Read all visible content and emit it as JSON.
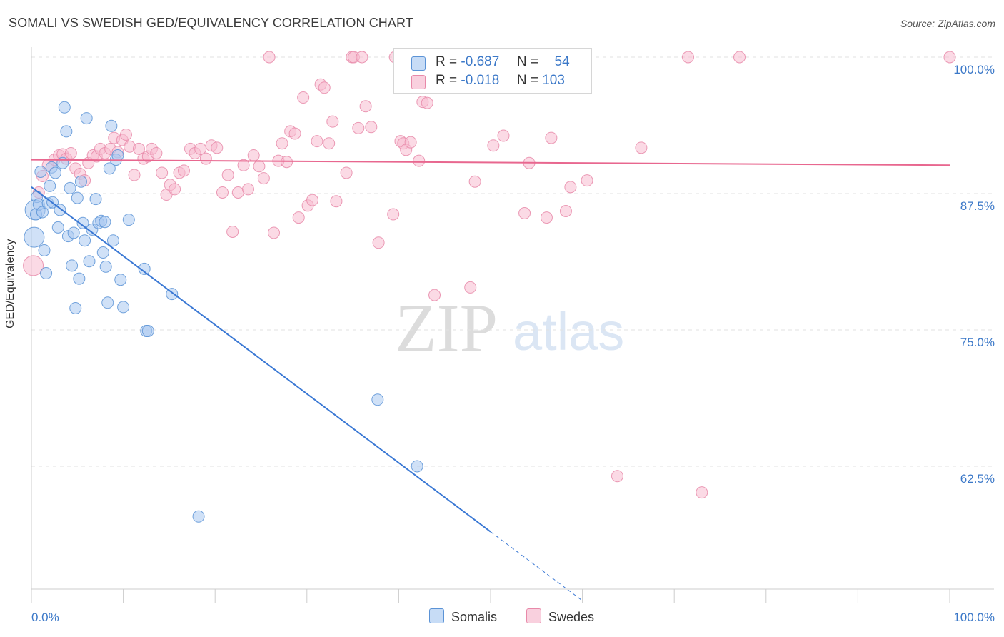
{
  "title": "SOMALI VS SWEDISH GED/EQUIVALENCY CORRELATION CHART",
  "source": "Source: ZipAtlas.com",
  "watermark": {
    "part1": "ZIP",
    "part2": "atlas"
  },
  "legend_top": {
    "rows": [
      {
        "r_label": "R =",
        "r_value": "-0.687",
        "n_label": "N =",
        "n_value": "54"
      },
      {
        "r_label": "R =",
        "r_value": "-0.018",
        "n_label": "N =",
        "n_value": "103"
      }
    ]
  },
  "legend_bottom": [
    "Somalis",
    "Swedes"
  ],
  "colors": {
    "somali_fill": "#a9c8f0",
    "somali_stroke": "#5b93d6",
    "somali_line": "#3a78d4",
    "swede_fill": "#f7bcd0",
    "swede_stroke": "#e889a9",
    "swede_line": "#e8678f",
    "grid": "#e2e2e2",
    "axis_text": "#3b78c8"
  },
  "chart_data": {
    "type": "scatter",
    "title": "SOMALI VS SWEDISH GED/EQUIVALENCY CORRELATION CHART",
    "xlabel": "",
    "ylabel": "GED/Equivalency",
    "x_tick_labels": [
      "0.0%",
      "100.0%"
    ],
    "y_tick_labels": [
      "100.0%",
      "87.5%",
      "75.0%",
      "62.5%"
    ],
    "y_ticks": [
      100.0,
      87.5,
      75.0,
      62.5
    ],
    "xlim": [
      0,
      100
    ],
    "ylim": [
      50.0,
      101.0
    ],
    "grid": true,
    "series": [
      {
        "name": "Somalis",
        "R": -0.687,
        "N": 54,
        "trend": {
          "x0": 0,
          "y0": 88.1,
          "x1": 50,
          "y1": 56.5,
          "dashed_to_x": 60
        },
        "points": [
          [
            0.3,
            83.5
          ],
          [
            0.4,
            86.0
          ],
          [
            0.5,
            85.6
          ],
          [
            0.6,
            87.2
          ],
          [
            0.8,
            86.5
          ],
          [
            1.0,
            89.5
          ],
          [
            1.2,
            85.8
          ],
          [
            1.4,
            82.3
          ],
          [
            1.6,
            80.2
          ],
          [
            1.8,
            86.6
          ],
          [
            2.0,
            88.2
          ],
          [
            2.2,
            89.9
          ],
          [
            2.3,
            86.7
          ],
          [
            2.6,
            89.4
          ],
          [
            2.9,
            84.4
          ],
          [
            3.1,
            86.0
          ],
          [
            3.4,
            90.3
          ],
          [
            3.6,
            95.4
          ],
          [
            3.8,
            93.2
          ],
          [
            4.0,
            83.6
          ],
          [
            4.2,
            88.0
          ],
          [
            4.4,
            80.9
          ],
          [
            4.6,
            83.9
          ],
          [
            4.8,
            77.0
          ],
          [
            5.0,
            87.1
          ],
          [
            5.2,
            79.7
          ],
          [
            5.4,
            88.6
          ],
          [
            5.6,
            84.8
          ],
          [
            5.8,
            83.2
          ],
          [
            6.0,
            94.4
          ],
          [
            6.3,
            81.3
          ],
          [
            6.6,
            84.2
          ],
          [
            7.0,
            87.0
          ],
          [
            7.3,
            84.8
          ],
          [
            7.6,
            85.0
          ],
          [
            7.8,
            82.1
          ],
          [
            8.0,
            84.9
          ],
          [
            8.1,
            80.8
          ],
          [
            8.3,
            77.5
          ],
          [
            8.5,
            89.8
          ],
          [
            8.7,
            93.7
          ],
          [
            8.9,
            83.2
          ],
          [
            9.2,
            90.6
          ],
          [
            9.4,
            91.0
          ],
          [
            9.7,
            79.6
          ],
          [
            10.0,
            77.1
          ],
          [
            10.6,
            85.1
          ],
          [
            12.3,
            80.6
          ],
          [
            12.5,
            74.9
          ],
          [
            12.7,
            74.9
          ],
          [
            15.3,
            78.3
          ],
          [
            18.2,
            57.9
          ],
          [
            37.7,
            68.6
          ],
          [
            42.0,
            62.5
          ]
        ]
      },
      {
        "name": "Swedes",
        "R": -0.018,
        "N": 103,
        "trend": {
          "x0": 0,
          "y0": 90.6,
          "x1": 100,
          "y1": 90.1
        },
        "points": [
          [
            0.2,
            80.9
          ],
          [
            0.8,
            87.6
          ],
          [
            1.2,
            89.1
          ],
          [
            1.8,
            90.1
          ],
          [
            2.5,
            90.6
          ],
          [
            3.0,
            91.0
          ],
          [
            3.4,
            91.1
          ],
          [
            3.8,
            90.7
          ],
          [
            4.3,
            91.2
          ],
          [
            4.8,
            89.8
          ],
          [
            5.3,
            89.3
          ],
          [
            5.8,
            88.7
          ],
          [
            6.2,
            90.3
          ],
          [
            6.7,
            91.0
          ],
          [
            7.1,
            90.9
          ],
          [
            7.5,
            91.6
          ],
          [
            8.0,
            91.2
          ],
          [
            8.6,
            91.6
          ],
          [
            9.0,
            92.6
          ],
          [
            9.4,
            91.3
          ],
          [
            9.9,
            92.4
          ],
          [
            10.3,
            92.9
          ],
          [
            10.7,
            91.8
          ],
          [
            11.2,
            89.2
          ],
          [
            11.7,
            91.6
          ],
          [
            12.2,
            90.7
          ],
          [
            12.7,
            90.9
          ],
          [
            13.1,
            91.6
          ],
          [
            13.6,
            91.2
          ],
          [
            14.2,
            89.4
          ],
          [
            14.7,
            87.4
          ],
          [
            15.1,
            88.3
          ],
          [
            15.6,
            87.9
          ],
          [
            16.1,
            89.4
          ],
          [
            16.6,
            89.6
          ],
          [
            17.3,
            91.6
          ],
          [
            17.8,
            91.2
          ],
          [
            18.4,
            91.6
          ],
          [
            19.0,
            90.7
          ],
          [
            19.6,
            91.9
          ],
          [
            20.2,
            91.7
          ],
          [
            20.8,
            87.6
          ],
          [
            21.4,
            89.2
          ],
          [
            21.9,
            84.0
          ],
          [
            22.5,
            87.6
          ],
          [
            23.1,
            90.1
          ],
          [
            23.6,
            87.9
          ],
          [
            24.2,
            91.0
          ],
          [
            24.8,
            90.0
          ],
          [
            25.3,
            88.9
          ],
          [
            25.9,
            100.0
          ],
          [
            26.4,
            83.9
          ],
          [
            26.9,
            90.5
          ],
          [
            27.3,
            92.1
          ],
          [
            27.8,
            90.4
          ],
          [
            28.2,
            93.2
          ],
          [
            28.7,
            93.0
          ],
          [
            29.1,
            85.3
          ],
          [
            29.6,
            96.3
          ],
          [
            30.1,
            86.4
          ],
          [
            30.6,
            86.9
          ],
          [
            31.1,
            92.3
          ],
          [
            31.5,
            97.5
          ],
          [
            31.9,
            97.2
          ],
          [
            32.4,
            92.1
          ],
          [
            32.8,
            94.1
          ],
          [
            33.2,
            86.8
          ],
          [
            34.3,
            89.4
          ],
          [
            34.9,
            100.0
          ],
          [
            35.1,
            100.0
          ],
          [
            35.6,
            93.5
          ],
          [
            36.0,
            100.0
          ],
          [
            36.4,
            95.5
          ],
          [
            37.0,
            93.6
          ],
          [
            37.8,
            83.0
          ],
          [
            39.4,
            85.6
          ],
          [
            40.2,
            92.3
          ],
          [
            40.5,
            92.1
          ],
          [
            40.8,
            91.5
          ],
          [
            41.3,
            92.2
          ],
          [
            42.2,
            90.5
          ],
          [
            42.6,
            95.9
          ],
          [
            43.1,
            95.8
          ],
          [
            43.9,
            78.2
          ],
          [
            47.2,
            100.0
          ],
          [
            47.8,
            78.9
          ],
          [
            48.3,
            88.6
          ],
          [
            50.3,
            91.9
          ],
          [
            51.4,
            92.8
          ],
          [
            53.7,
            85.7
          ],
          [
            54.2,
            90.3
          ],
          [
            56.1,
            85.3
          ],
          [
            56.6,
            92.6
          ],
          [
            58.2,
            85.9
          ],
          [
            58.7,
            88.1
          ],
          [
            60.5,
            88.7
          ],
          [
            63.8,
            61.6
          ],
          [
            66.4,
            91.7
          ],
          [
            71.5,
            100.0
          ],
          [
            73.0,
            60.1
          ],
          [
            77.1,
            100.0
          ],
          [
            100.0,
            100.0
          ],
          [
            39.6,
            100.0
          ]
        ]
      }
    ]
  }
}
